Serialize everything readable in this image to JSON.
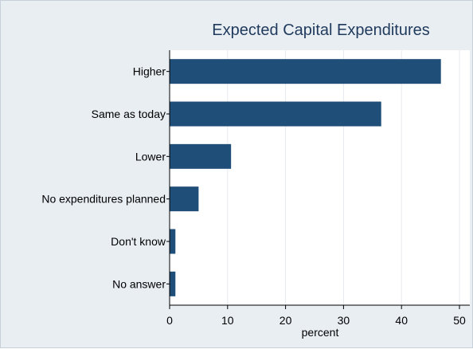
{
  "chart_data": {
    "type": "bar",
    "orientation": "horizontal",
    "title": "Expected Capital Expenditures",
    "xlabel": "percent",
    "ylabel": "",
    "categories": [
      "Higher",
      "Same as today",
      "Lower",
      "No expenditures planned",
      "Don't know",
      "No answer"
    ],
    "values": [
      46.8,
      36.5,
      10.6,
      5.0,
      1.0,
      1.0
    ],
    "xlim": [
      0,
      50
    ],
    "xticks": [
      "0",
      "10",
      "20",
      "30",
      "40",
      "50"
    ],
    "grid": true,
    "legend": "none",
    "colors": {
      "bar": "#1f4e79",
      "plot_bg": "#ffffff",
      "frame_bg": "#e9eef3",
      "grid": "#e6eaee",
      "title": "#1f3a5c"
    }
  }
}
